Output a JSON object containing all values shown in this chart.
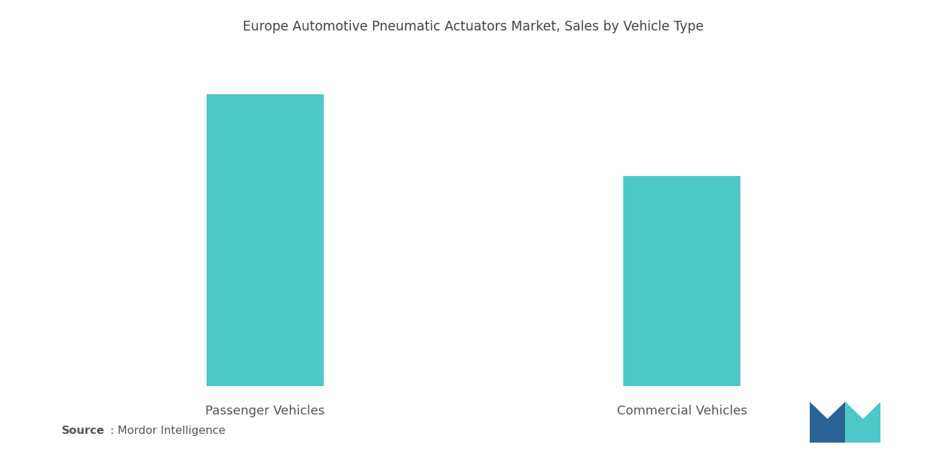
{
  "title": "Europe Automotive Pneumatic Actuators Market, Sales by Vehicle Type",
  "categories": [
    "Passenger Vehicles",
    "Commercial Vehicles"
  ],
  "values": [
    1.0,
    0.72
  ],
  "bar_color": "#4DC8C8",
  "bar_width": 0.28,
  "bar_positions": [
    1,
    2
  ],
  "background_color": "#ffffff",
  "title_fontsize": 13.5,
  "label_fontsize": 13,
  "source_bold": "Source",
  "source_regular": " : Mordor Intelligence",
  "source_fontsize": 11.5,
  "xlim": [
    0.5,
    2.5
  ],
  "ylim": [
    0,
    1.12
  ],
  "text_color": "#555555",
  "logo_left_color": "#2A6496",
  "logo_right_color": "#4DC8C8"
}
